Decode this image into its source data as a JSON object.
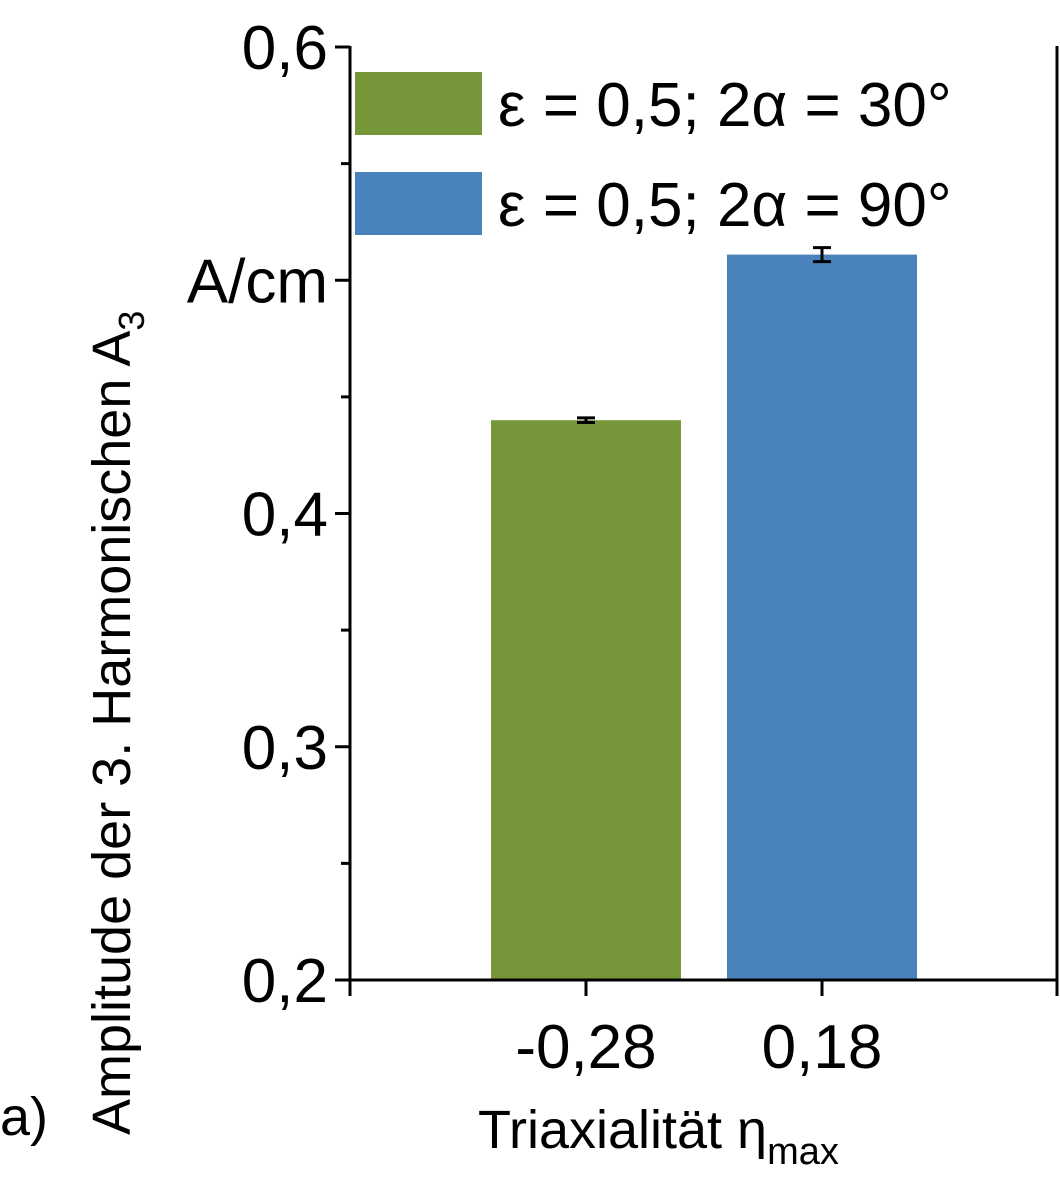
{
  "chart_data": {
    "type": "bar",
    "panel_label": "a)",
    "categories": [
      "-0,28",
      "0,18"
    ],
    "series": [
      {
        "name": "ε = 0,5; 2α = 30°",
        "color": "#76963A",
        "values": [
          0.44,
          null
        ],
        "errors": [
          0.001,
          null
        ]
      },
      {
        "name": "ε = 0,5; 2α = 90°",
        "color": "#4A83BB",
        "values": [
          null,
          0.511
        ],
        "errors": [
          null,
          0.003
        ]
      }
    ],
    "xlabel": "Triaxialität η",
    "xlabel_sub": "max",
    "ylabel": "Amplitude der 3. Harmonischen A",
    "ylabel_sub": "3",
    "yunit": "A/cm",
    "ylim": [
      0.2,
      0.6
    ],
    "yticks": [
      {
        "value": 0.2,
        "label": "0,2"
      },
      {
        "value": 0.3,
        "label": "0,3"
      },
      {
        "value": 0.4,
        "label": "0,4"
      },
      {
        "value": 0.5,
        "label": "A/cm"
      },
      {
        "value": 0.6,
        "label": "0,6"
      }
    ],
    "yminor": [
      0.25,
      0.35,
      0.45,
      0.55
    ],
    "legend_placement": "top-right",
    "grid": false
  }
}
